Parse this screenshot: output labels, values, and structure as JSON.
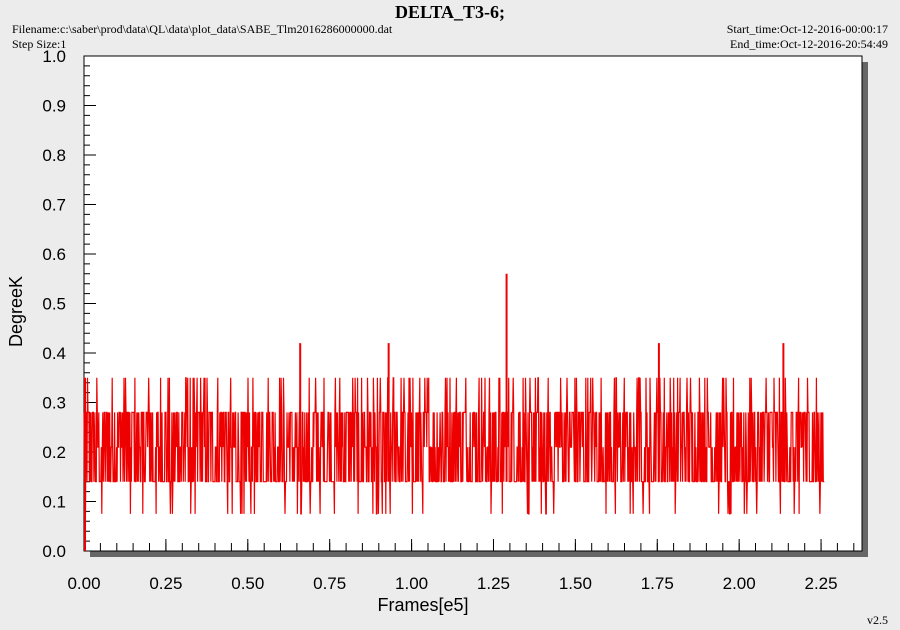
{
  "header": {
    "title": "DELTA_T3-6;",
    "filename": "Filename:c:\\saber\\prod\\data\\QL\\data\\plot_data\\SABE_Tlm2016286000000.dat",
    "step_size": "Step Size:1",
    "start_time": "Start_time:Oct-12-2016-00:00:17",
    "end_time": "End_time:Oct-12-2016-20:54:49",
    "version": "v2.5"
  },
  "colors": {
    "series": "#ee0000",
    "plot_bg": "#ffffff",
    "page_bg": "#ececec",
    "shadow": "#666666"
  },
  "chart_data": {
    "type": "line",
    "xlabel": "Frames[e5]",
    "ylabel": "DegreeK",
    "xlim": [
      0,
      2.375
    ],
    "ylim": [
      0,
      1.0
    ],
    "xticks": [
      "0.00",
      "0.25",
      "0.50",
      "0.75",
      "1.00",
      "1.25",
      "1.50",
      "1.75",
      "2.00",
      "2.25"
    ],
    "yticks": [
      "0.0",
      "0.1",
      "0.2",
      "0.3",
      "0.4",
      "0.5",
      "0.6",
      "0.7",
      "0.8",
      "0.9",
      "1.0"
    ],
    "series": [
      {
        "levels": [
          0.075,
          0.14,
          0.21,
          0.28,
          0.35
        ],
        "x_range": [
          0.0,
          2.26
        ],
        "band_low": 0.14,
        "band_high": 0.28,
        "spikes": [
          {
            "x": 0.66,
            "y": 0.42
          },
          {
            "x": 0.93,
            "y": 0.42
          },
          {
            "x": 1.29,
            "y": 0.56
          },
          {
            "x": 1.755,
            "y": 0.42
          },
          {
            "x": 2.135,
            "y": 0.42
          }
        ]
      }
    ]
  }
}
